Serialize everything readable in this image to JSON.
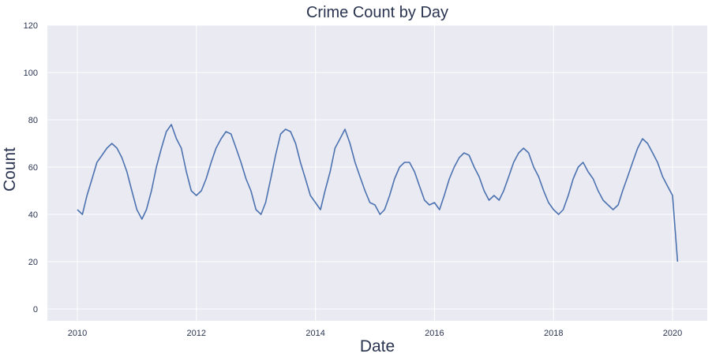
{
  "chart_data": {
    "type": "line",
    "title": "Crime Count by Day",
    "xlabel": "Date",
    "ylabel": "Count",
    "xlim": [
      "2009-07-01",
      "2020-08-01"
    ],
    "ylim": [
      -5,
      120
    ],
    "x_ticks": [
      "2010",
      "2012",
      "2014",
      "2016",
      "2018",
      "2020"
    ],
    "y_ticks": [
      0,
      20,
      40,
      60,
      80,
      100,
      120
    ],
    "grid": true,
    "legend": "none",
    "colors": {
      "background": "#eaeaf2",
      "grid": "#ffffff",
      "line": "#4c72b0"
    },
    "series": [
      {
        "x": [
          "2010-01-01",
          "2010-02-01",
          "2010-03-01",
          "2010-04-01",
          "2010-05-01",
          "2010-06-01",
          "2010-07-01",
          "2010-08-01",
          "2010-09-01",
          "2010-10-01",
          "2010-11-01",
          "2010-12-01",
          "2011-01-01",
          "2011-02-01",
          "2011-03-01",
          "2011-04-01",
          "2011-05-01",
          "2011-06-01",
          "2011-07-01",
          "2011-08-01",
          "2011-09-01",
          "2011-10-01",
          "2011-11-01",
          "2011-12-01",
          "2012-01-01",
          "2012-02-01",
          "2012-03-01",
          "2012-04-01",
          "2012-05-01",
          "2012-06-01",
          "2012-07-01",
          "2012-08-01",
          "2012-09-01",
          "2012-10-01",
          "2012-11-01",
          "2012-12-01",
          "2013-01-01",
          "2013-02-01",
          "2013-03-01",
          "2013-04-01",
          "2013-05-01",
          "2013-06-01",
          "2013-07-01",
          "2013-08-01",
          "2013-09-01",
          "2013-10-01",
          "2013-11-01",
          "2013-12-01",
          "2014-01-01",
          "2014-02-01",
          "2014-03-01",
          "2014-04-01",
          "2014-05-01",
          "2014-06-01",
          "2014-07-01",
          "2014-08-01",
          "2014-09-01",
          "2014-10-01",
          "2014-11-01",
          "2014-12-01",
          "2015-01-01",
          "2015-02-01",
          "2015-03-01",
          "2015-04-01",
          "2015-05-01",
          "2015-06-01",
          "2015-07-01",
          "2015-08-01",
          "2015-09-01",
          "2015-10-01",
          "2015-11-01",
          "2015-12-01",
          "2016-01-01",
          "2016-02-01",
          "2016-03-01",
          "2016-04-01",
          "2016-05-01",
          "2016-06-01",
          "2016-07-01",
          "2016-08-01",
          "2016-09-01",
          "2016-10-01",
          "2016-11-01",
          "2016-12-01",
          "2017-01-01",
          "2017-02-01",
          "2017-03-01",
          "2017-04-01",
          "2017-05-01",
          "2017-06-01",
          "2017-07-01",
          "2017-08-01",
          "2017-09-01",
          "2017-10-01",
          "2017-11-01",
          "2017-12-01",
          "2018-01-01",
          "2018-02-01",
          "2018-03-01",
          "2018-04-01",
          "2018-05-01",
          "2018-06-01",
          "2018-07-01",
          "2018-08-01",
          "2018-09-01",
          "2018-10-01",
          "2018-11-01",
          "2018-12-01",
          "2019-01-01",
          "2019-02-01",
          "2019-03-01",
          "2019-04-01",
          "2019-05-01",
          "2019-06-01",
          "2019-07-01",
          "2019-08-01",
          "2019-09-01",
          "2019-10-01",
          "2019-11-01",
          "2019-12-01",
          "2020-01-01",
          "2020-02-01"
        ],
        "y": [
          42,
          40,
          48,
          55,
          62,
          65,
          68,
          70,
          68,
          64,
          58,
          50,
          42,
          38,
          42,
          50,
          60,
          68,
          75,
          78,
          72,
          68,
          58,
          50,
          48,
          50,
          55,
          62,
          68,
          72,
          75,
          74,
          68,
          62,
          55,
          50,
          42,
          40,
          45,
          55,
          65,
          74,
          76,
          75,
          70,
          62,
          55,
          48,
          45,
          42,
          50,
          58,
          68,
          72,
          76,
          70,
          62,
          56,
          50,
          45,
          44,
          40,
          42,
          48,
          55,
          60,
          62,
          62,
          58,
          52,
          46,
          44,
          45,
          42,
          48,
          55,
          60,
          64,
          66,
          65,
          60,
          56,
          50,
          46,
          48,
          46,
          50,
          56,
          62,
          66,
          68,
          66,
          60,
          56,
          50,
          45,
          42,
          40,
          42,
          48,
          55,
          60,
          62,
          58,
          55,
          50,
          46,
          44,
          42,
          44,
          50,
          56,
          62,
          68,
          72,
          70,
          66,
          62,
          56,
          52,
          48,
          20
        ]
      }
    ]
  }
}
